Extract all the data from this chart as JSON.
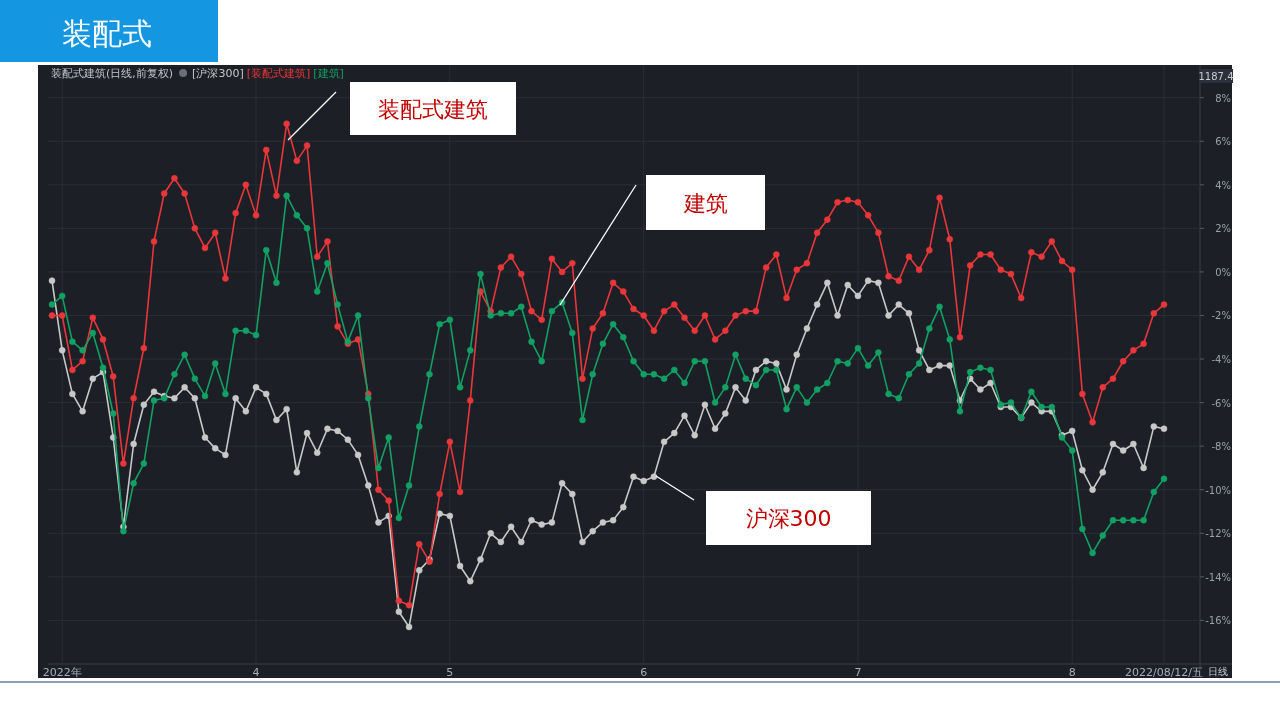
{
  "chart_data": {
    "type": "line",
    "title": "装配式",
    "subtitle": "装配式建筑(日线,前复权)",
    "categories": [
      null,
      "2022年",
      null,
      null,
      null,
      null,
      null,
      null,
      null,
      null,
      null,
      null,
      null,
      null,
      null,
      null,
      null,
      null,
      null,
      null,
      "4",
      null,
      null,
      null,
      null,
      null,
      null,
      null,
      null,
      null,
      null,
      null,
      null,
      null,
      null,
      null,
      null,
      null,
      null,
      "5",
      null,
      null,
      null,
      null,
      null,
      null,
      null,
      null,
      null,
      null,
      null,
      null,
      null,
      null,
      null,
      null,
      null,
      null,
      "6",
      null,
      null,
      null,
      null,
      null,
      null,
      null,
      null,
      null,
      null,
      null,
      null,
      null,
      null,
      null,
      null,
      null,
      null,
      null,
      null,
      "7",
      null,
      null,
      null,
      null,
      null,
      null,
      null,
      null,
      null,
      null,
      null,
      null,
      null,
      null,
      null,
      null,
      null,
      null,
      null,
      null,
      "8",
      null,
      null,
      null,
      null,
      null,
      null,
      null,
      null,
      "2022/08/12/五"
    ],
    "series": [
      {
        "name": "[沪深300]",
        "color": "#c8c8c8",
        "values": [
          -0.4,
          -3.6,
          -5.6,
          -6.4,
          -4.9,
          -4.6,
          -7.6,
          -11.7,
          -7.9,
          -6.1,
          -5.5,
          -5.7,
          -5.8,
          -5.3,
          -5.8,
          -7.6,
          -8.1,
          -8.4,
          -5.8,
          -6.4,
          -5.3,
          -5.6,
          -6.8,
          -6.3,
          -9.2,
          -7.4,
          -8.3,
          -7.2,
          -7.3,
          -7.7,
          -8.4,
          -9.8,
          -11.5,
          -11.2,
          -15.6,
          -16.3,
          -13.7,
          -13.2,
          -11.1,
          -11.2,
          -13.5,
          -14.2,
          -13.2,
          -12.0,
          -12.4,
          -11.7,
          -12.4,
          -11.4,
          -11.6,
          -11.5,
          -9.7,
          -10.2,
          -12.4,
          -11.9,
          -11.5,
          -11.4,
          -10.8,
          -9.4,
          -9.6,
          -9.4,
          -7.8,
          -7.4,
          -6.6,
          -7.5,
          -6.1,
          -7.2,
          -6.5,
          -5.3,
          -5.9,
          -4.5,
          -4.1,
          -4.2,
          -5.4,
          -3.8,
          -2.6,
          -1.5,
          -0.5,
          -2.0,
          -0.6,
          -1.1,
          -0.4,
          -0.5,
          -2.0,
          -1.5,
          -1.9,
          -3.6,
          -4.5,
          -4.3,
          -4.3,
          -5.9,
          -4.9,
          -5.4,
          -5.1,
          -6.2,
          -6.2,
          -6.7,
          -6.0,
          -6.4,
          -6.4,
          -7.5,
          -7.3,
          -9.1,
          -10.0,
          -9.2,
          -7.9,
          -8.2,
          -7.9,
          -9.0,
          -7.1,
          -7.2
        ]
      },
      {
        "name": "[装配式建筑]",
        "color": "#e8373a",
        "values": [
          -2.0,
          -2.0,
          -4.5,
          -4.1,
          -2.1,
          -3.1,
          -4.8,
          -8.8,
          -5.8,
          -3.5,
          1.4,
          3.6,
          4.3,
          3.6,
          2.0,
          1.1,
          1.8,
          -0.3,
          2.7,
          4.0,
          2.6,
          5.6,
          3.5,
          6.8,
          5.1,
          5.8,
          0.7,
          1.4,
          -2.5,
          -3.3,
          -3.1,
          -5.6,
          -10.0,
          -10.5,
          -15.1,
          -15.3,
          -12.5,
          -13.3,
          -10.2,
          -7.8,
          -10.1,
          -5.9,
          -0.9,
          -1.8,
          0.2,
          0.7,
          -0.1,
          -1.8,
          -2.2,
          0.6,
          0.0,
          0.4,
          -4.9,
          -2.6,
          -1.9,
          -0.5,
          -0.9,
          -1.7,
          -2.0,
          -2.7,
          -1.8,
          -1.5,
          -2.1,
          -2.7,
          -2.0,
          -3.1,
          -2.7,
          -2.0,
          -1.8,
          -1.8,
          0.2,
          0.8,
          -1.2,
          0.1,
          0.4,
          1.8,
          2.4,
          3.2,
          3.3,
          3.2,
          2.6,
          1.8,
          -0.2,
          -0.4,
          0.7,
          0.1,
          1.0,
          3.4,
          1.5,
          -3.0,
          0.3,
          0.8,
          0.8,
          0.1,
          -0.1,
          -1.2,
          0.9,
          0.7,
          1.4,
          0.5,
          0.1,
          -5.6,
          -6.9,
          -5.3,
          -4.9,
          -4.1,
          -3.6,
          -3.3,
          -1.9,
          -1.5
        ]
      },
      {
        "name": "[建筑]",
        "color": "#13a064",
        "values": [
          -1.5,
          -1.1,
          -3.2,
          -3.6,
          -2.8,
          -4.4,
          -6.5,
          -11.9,
          -9.7,
          -8.8,
          -5.9,
          -5.8,
          -4.7,
          -3.8,
          -4.9,
          -5.7,
          -4.2,
          -5.6,
          -2.7,
          -2.7,
          -2.9,
          1.0,
          -0.5,
          3.5,
          2.6,
          2.0,
          -0.9,
          0.4,
          -1.5,
          -3.2,
          -2.0,
          -5.8,
          -9.0,
          -7.6,
          -11.3,
          -9.8,
          -7.1,
          -4.7,
          -2.4,
          -2.2,
          -5.3,
          -3.6,
          -0.1,
          -2.0,
          -1.9,
          -1.9,
          -1.6,
          -3.2,
          -4.1,
          -1.8,
          -1.4,
          -2.8,
          -6.8,
          -4.7,
          -3.3,
          -2.4,
          -3.0,
          -4.1,
          -4.7,
          -4.7,
          -4.9,
          -4.5,
          -5.1,
          -4.1,
          -4.1,
          -6.0,
          -5.3,
          -3.8,
          -4.9,
          -5.2,
          -4.5,
          -4.5,
          -6.3,
          -5.3,
          -6.0,
          -5.4,
          -5.1,
          -4.1,
          -4.2,
          -3.5,
          -4.3,
          -3.7,
          -5.6,
          -5.8,
          -4.7,
          -4.2,
          -2.6,
          -1.6,
          -3.1,
          -6.4,
          -4.6,
          -4.4,
          -4.5,
          -6.1,
          -6.0,
          -6.7,
          -5.5,
          -6.2,
          -6.2,
          -7.6,
          -8.2,
          -11.8,
          -12.9,
          -12.1,
          -11.4,
          -11.4,
          -11.4,
          -11.4,
          -10.1,
          -9.5
        ]
      }
    ],
    "ylim": [
      -18,
      9.5
    ],
    "yticks": [
      {
        "value": 8,
        "label": "8%"
      },
      {
        "value": 6,
        "label": "6%"
      },
      {
        "value": 4,
        "label": "4%"
      },
      {
        "value": 2,
        "label": "2%"
      },
      {
        "value": 0,
        "label": "0%"
      },
      {
        "value": -2,
        "label": "-2%"
      },
      {
        "value": -4,
        "label": "-4%"
      },
      {
        "value": -6,
        "label": "-6%"
      },
      {
        "value": -8,
        "label": "-8%"
      },
      {
        "value": -10,
        "label": "-10%"
      },
      {
        "value": -12,
        "label": "-12%"
      },
      {
        "value": -14,
        "label": "-14%"
      },
      {
        "value": -16,
        "label": "-16%"
      }
    ],
    "grid": true,
    "legend": "top left",
    "marker": "circle",
    "line_style": "solid",
    "annotations": [
      "装配式建筑",
      "建筑",
      "沪深300",
      "1187.4",
      "日线"
    ]
  }
}
